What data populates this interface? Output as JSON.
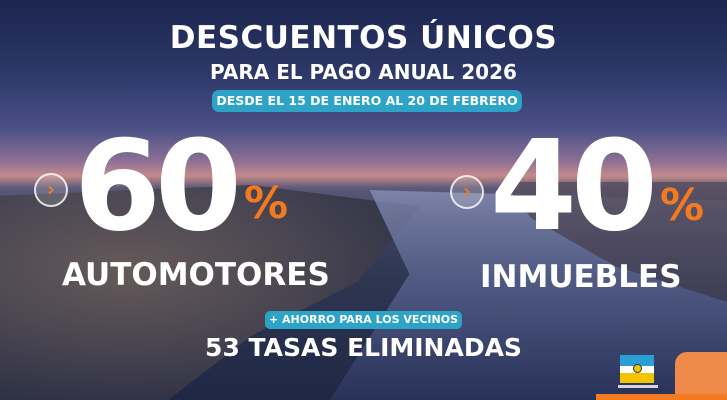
{
  "headline": {
    "title": "DESCUENTOS ÚNICOS",
    "subtitle": "PARA EL PAGO ANUAL 2026",
    "date_range": "DESDE EL 15 DE ENERO AL 20 DE FEBRERO"
  },
  "offers": [
    {
      "value": "60",
      "unit": "%",
      "category": "AUTOMOTORES",
      "icon": "chevron-right-icon"
    },
    {
      "value": "40",
      "unit": "%",
      "category": "INMUEBLES",
      "icon": "chevron-right-icon"
    }
  ],
  "footer": {
    "badge": "+ AHORRO PARA LOS VECINOS",
    "highlight": "53 TASAS ELIMINADAS"
  },
  "colors": {
    "accent": "#f47a20",
    "pill": "#2ea3c8",
    "text": "#ffffff"
  },
  "logos": {
    "municipality_logo": "flag-logo",
    "brand_logo": "orange-logo"
  }
}
